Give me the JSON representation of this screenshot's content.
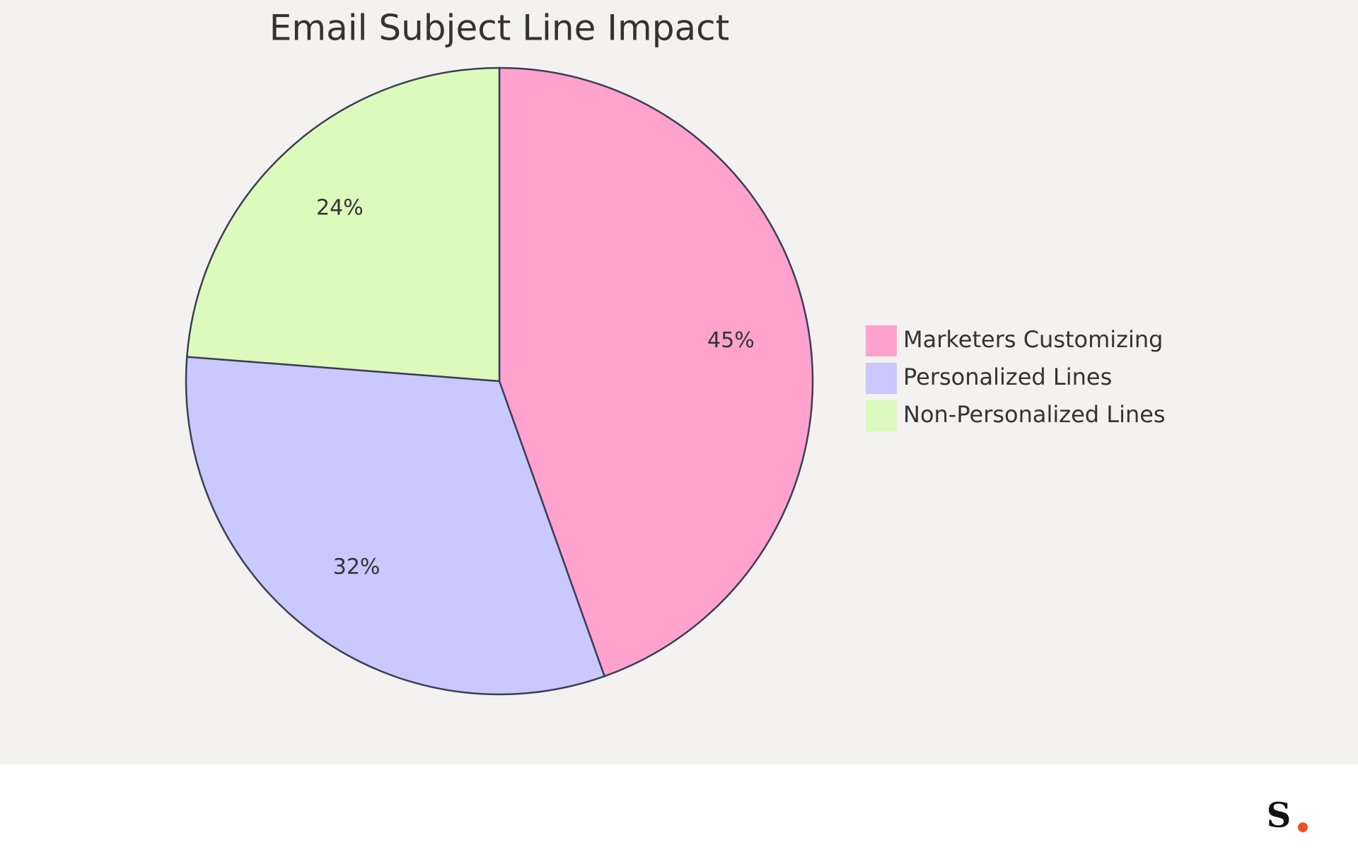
{
  "chart_data": {
    "type": "pie",
    "title": "Email Subject Line Impact",
    "categories": [
      "Marketers Customizing",
      "Personalized Lines",
      "Non-Personalized Lines"
    ],
    "values": [
      45,
      32,
      24
    ],
    "value_labels": [
      "45%",
      "32%",
      "24%"
    ],
    "colors": [
      "#ffa3ce",
      "#c9c9ff",
      "#dcfabc"
    ],
    "legend": "right"
  },
  "footer": {
    "logo": "S"
  }
}
